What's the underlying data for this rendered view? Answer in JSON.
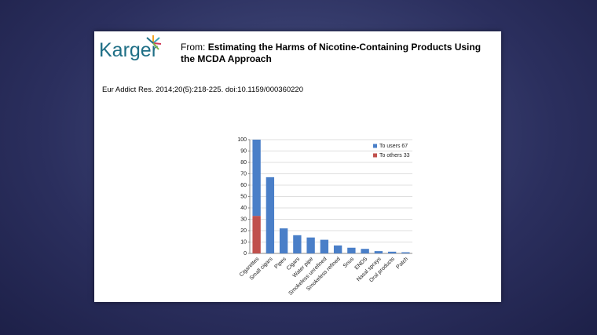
{
  "header": {
    "logo": "Karger",
    "from_label": "From:",
    "title": "Estimating the Harms of Nicotine-Containing Products Using the MCDA Approach",
    "citation": "Eur Addict Res. 2014;20(5):218-225. doi:10.1159/000360220"
  },
  "chart_data": {
    "type": "stacked-bar",
    "categories": [
      "Cigarettes",
      "Small cigars",
      "Pipes",
      "Cigars",
      "Water pipe",
      "Smokeless unrefined",
      "Smokeless refined",
      "Snus",
      "ENDS",
      "Nasal sprays",
      "Oral products",
      "Patch"
    ],
    "series": [
      {
        "name": "To users 67",
        "color": "#4a7fc8",
        "values": [
          67,
          67,
          22,
          16,
          14,
          12,
          7,
          5,
          4,
          2,
          1.5,
          1
        ]
      },
      {
        "name": "To others 33",
        "color": "#c0504d",
        "values": [
          33,
          null,
          null,
          null,
          null,
          null,
          null,
          null,
          null,
          null,
          null,
          null
        ]
      }
    ],
    "stack_bottom_first": [
      "To others 33",
      "To users 67"
    ],
    "ylim": [
      0,
      100
    ],
    "yticks": [
      0,
      10,
      20,
      30,
      40,
      50,
      60,
      70,
      80,
      90,
      100
    ],
    "grid": true,
    "legend": "top-right"
  }
}
